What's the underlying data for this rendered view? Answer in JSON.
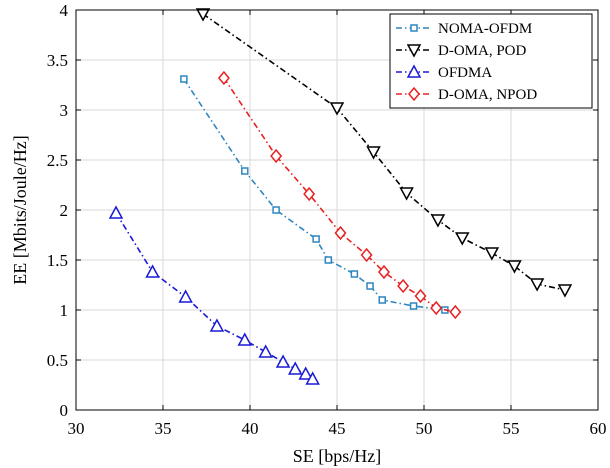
{
  "chart_data": {
    "type": "line",
    "title": "",
    "xlabel": "SE [bps/Hz]",
    "ylabel": "EE [Mbits/Joule/Hz]",
    "xlim": [
      30,
      60
    ],
    "ylim": [
      0,
      4
    ],
    "xticks": [
      "30",
      "35",
      "40",
      "45",
      "50",
      "55",
      "60"
    ],
    "yticks": [
      "0",
      "0.5",
      "1",
      "1.5",
      "2",
      "2.5",
      "3",
      "3.5",
      "4"
    ],
    "grid": true,
    "legend_position": "top-right",
    "series": [
      {
        "name": "NOMA-OFDM",
        "color": "#2e86c1",
        "marker": "square",
        "x": [
          36.2,
          39.7,
          41.5,
          43.8,
          44.5,
          46.0,
          46.9,
          47.6,
          49.4,
          51.2
        ],
        "y": [
          3.31,
          2.39,
          2.0,
          1.71,
          1.5,
          1.36,
          1.24,
          1.1,
          1.04,
          1.0
        ]
      },
      {
        "name": "D-OMA, POD",
        "color": "#000000",
        "marker": "triangle-down",
        "x": [
          37.3,
          45.0,
          47.1,
          49.0,
          50.8,
          52.2,
          53.9,
          55.2,
          56.5,
          58.1
        ],
        "y": [
          3.96,
          3.02,
          2.58,
          2.17,
          1.9,
          1.72,
          1.57,
          1.44,
          1.26,
          1.2
        ]
      },
      {
        "name": "OFDMA",
        "color": "#1a1ad6",
        "marker": "triangle-up",
        "x": [
          32.3,
          34.4,
          36.3,
          38.1,
          39.7,
          40.9,
          41.9,
          42.6,
          43.2,
          43.6
        ],
        "y": [
          1.97,
          1.38,
          1.13,
          0.84,
          0.7,
          0.58,
          0.48,
          0.41,
          0.36,
          0.31
        ]
      },
      {
        "name": "D-OMA, NPOD",
        "color": "#e82020",
        "marker": "diamond",
        "x": [
          38.5,
          41.5,
          43.4,
          45.2,
          46.7,
          47.7,
          48.8,
          49.8,
          50.7,
          51.8
        ],
        "y": [
          3.32,
          2.54,
          2.16,
          1.77,
          1.55,
          1.38,
          1.24,
          1.14,
          1.02,
          0.98
        ]
      }
    ]
  }
}
